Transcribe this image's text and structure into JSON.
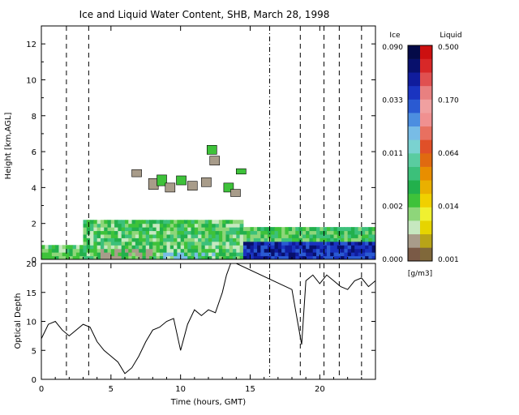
{
  "chart_data": [
    {
      "type": "heatmap",
      "title": "Ice and Liquid Water Content, SHB, March 28, 1998",
      "xlim": [
        0,
        24
      ],
      "ylim": [
        0,
        13
      ],
      "ylabel": "Height [km,AGL]",
      "y_ticks": [
        0,
        2,
        4,
        6,
        8,
        10,
        12
      ],
      "grid": false,
      "colorbar": {
        "placement": "right",
        "ice_label": "Ice",
        "liquid_label": "Liquid",
        "unit": "[g/m3]",
        "ice_ticks": [
          "0.000",
          "0.002",
          "0.011",
          "0.033",
          "0.090"
        ],
        "liquid_ticks": [
          "0.001",
          "0.014",
          "0.064",
          "0.170",
          "0.500"
        ],
        "ice_colors": [
          "#7a5a46",
          "#a89c8a",
          "#c6e8c0",
          "#8ed67a",
          "#3ec23a",
          "#22b04c",
          "#3cc07a",
          "#5acca0",
          "#7ad2d0",
          "#78bce6",
          "#4c8ee0",
          "#2a5ad2",
          "#1a34c0",
          "#101c9c",
          "#08106c",
          "#040a48"
        ],
        "liquid_colors": [
          "#80683a",
          "#b8a418",
          "#e6d400",
          "#f0f030",
          "#f0d000",
          "#eab000",
          "#e88e00",
          "#e06a10",
          "#e05028",
          "#e87060",
          "#f09090",
          "#f0a0a0",
          "#e88080",
          "#e05050",
          "#d82828",
          "#cc1010"
        ]
      },
      "events": {
        "dashed_lines_hours": [
          1.8,
          3.4,
          18.6,
          20.3,
          21.4,
          23.0
        ],
        "dash_dot_lines_hours": [
          16.4
        ]
      },
      "layers": [
        {
          "name": "ice",
          "x_start": 3.0,
          "x_end": 24.0,
          "bottom_km": 0.0,
          "top_km": 2.15
        },
        {
          "name": "liquid",
          "x_start": 0.0,
          "x_end": 3.0,
          "bottom_km": 0.0,
          "top_km": 0.8
        }
      ]
    },
    {
      "type": "line",
      "xlabel": "Time (hours, GMT)",
      "ylabel": "Optical Depth",
      "xlim": [
        0,
        24
      ],
      "ylim": [
        0,
        20
      ],
      "x_ticks": [
        0,
        5,
        10,
        15,
        20
      ],
      "y_ticks": [
        0,
        5,
        10,
        15,
        20
      ],
      "grid": false,
      "x": [
        0,
        0.5,
        1.0,
        1.5,
        2.0,
        2.5,
        3.0,
        3.5,
        4.0,
        4.5,
        5.0,
        5.5,
        6.0,
        6.5,
        7.0,
        7.5,
        8.0,
        8.5,
        9.0,
        9.5,
        10.0,
        10.5,
        11.0,
        11.5,
        12.0,
        12.5,
        13.0,
        13.3,
        13.6,
        14.0,
        18.0,
        18.4,
        18.7,
        19.0,
        19.5,
        20.0,
        20.5,
        21.0,
        21.5,
        22.0,
        22.5,
        23.0,
        23.5,
        24.0
      ],
      "y": [
        7.0,
        9.5,
        10.0,
        8.5,
        7.5,
        8.5,
        9.5,
        9.0,
        6.5,
        5.0,
        4.0,
        3.0,
        1.0,
        2.0,
        4.0,
        6.5,
        8.5,
        9.0,
        10.0,
        10.5,
        5.0,
        9.5,
        12.0,
        11.0,
        12.0,
        11.5,
        15.0,
        18.0,
        20.0,
        20.0,
        15.5,
        10.0,
        6.0,
        17.0,
        18.0,
        16.5,
        18.0,
        17.0,
        16.0,
        15.5,
        17.0,
        17.5,
        16.0,
        17.0
      ]
    }
  ]
}
